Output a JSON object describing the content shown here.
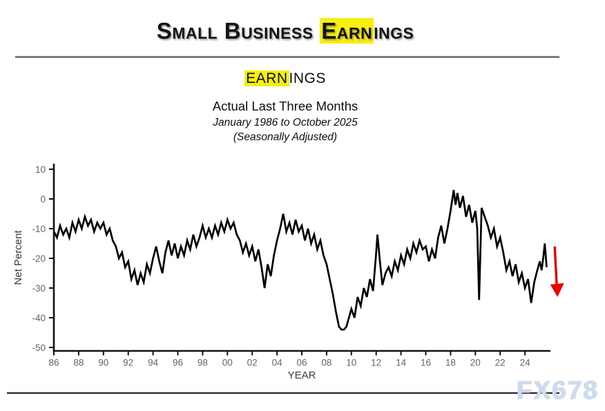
{
  "page": {
    "title": {
      "pre": "Small Business ",
      "highlight": "Earn",
      "post": "ings"
    },
    "watermark": "FX678"
  },
  "subtitle": {
    "heading": {
      "pre": "",
      "highlight": "EARN",
      "post": "INGS"
    },
    "line1": "Actual Last Three Months",
    "line2": "January 1986 to October 2025",
    "line3": "(Seasonally Adjusted)"
  },
  "chart_data": {
    "type": "line",
    "title": "Small Business Earnings — Actual Last Three Months (Seasonally Adjusted)",
    "xlabel": "YEAR",
    "ylabel": "Net Percent",
    "xlim": [
      1986,
      2026.2
    ],
    "ylim": [
      -51,
      11
    ],
    "grid": false,
    "legend": "none",
    "line_color": "#000000",
    "highlight_color": "#f7ef13",
    "annotation_color": "#ee0000",
    "y_ticks": [
      10,
      0,
      -10,
      -20,
      -30,
      -40,
      -50
    ],
    "x_ticks": [
      [
        1986,
        "86"
      ],
      [
        1988,
        "88"
      ],
      [
        1990,
        "90"
      ],
      [
        1992,
        "92"
      ],
      [
        1994,
        "94"
      ],
      [
        1996,
        "96"
      ],
      [
        1998,
        "98"
      ],
      [
        2000,
        "00"
      ],
      [
        2002,
        "02"
      ],
      [
        2004,
        "04"
      ],
      [
        2006,
        "06"
      ],
      [
        2008,
        "08"
      ],
      [
        2010,
        "10"
      ],
      [
        2012,
        "12"
      ],
      [
        2014,
        "14"
      ],
      [
        2016,
        "16"
      ],
      [
        2018,
        "18"
      ],
      [
        2020,
        "20"
      ],
      [
        2022,
        "22"
      ],
      [
        2024,
        "24"
      ]
    ],
    "series": [
      {
        "name": "Actual earnings changes, net percent",
        "points": [
          [
            1986,
            -11
          ],
          [
            1986.25,
            -13
          ],
          [
            1986.5,
            -9
          ],
          [
            1986.75,
            -12
          ],
          [
            1987,
            -10
          ],
          [
            1987.25,
            -13
          ],
          [
            1987.5,
            -8
          ],
          [
            1987.75,
            -11
          ],
          [
            1988,
            -7
          ],
          [
            1988.25,
            -10
          ],
          [
            1988.5,
            -6
          ],
          [
            1988.75,
            -9
          ],
          [
            1989,
            -7
          ],
          [
            1989.25,
            -11
          ],
          [
            1989.5,
            -8
          ],
          [
            1989.75,
            -10
          ],
          [
            1990,
            -8
          ],
          [
            1990.25,
            -12
          ],
          [
            1990.5,
            -10
          ],
          [
            1990.75,
            -14
          ],
          [
            1991,
            -16
          ],
          [
            1991.25,
            -20
          ],
          [
            1991.5,
            -18
          ],
          [
            1991.75,
            -23
          ],
          [
            1992,
            -21
          ],
          [
            1992.25,
            -27
          ],
          [
            1992.5,
            -24
          ],
          [
            1992.75,
            -29
          ],
          [
            1993,
            -25
          ],
          [
            1993.25,
            -28
          ],
          [
            1993.5,
            -22
          ],
          [
            1993.75,
            -25
          ],
          [
            1994,
            -20
          ],
          [
            1994.25,
            -16
          ],
          [
            1994.5,
            -21
          ],
          [
            1994.75,
            -25
          ],
          [
            1995,
            -18
          ],
          [
            1995.25,
            -14
          ],
          [
            1995.5,
            -19
          ],
          [
            1995.75,
            -15
          ],
          [
            1996,
            -20
          ],
          [
            1996.25,
            -16
          ],
          [
            1996.5,
            -19
          ],
          [
            1996.75,
            -14
          ],
          [
            1997,
            -17
          ],
          [
            1997.25,
            -12
          ],
          [
            1997.5,
            -16
          ],
          [
            1997.75,
            -13
          ],
          [
            1998,
            -9
          ],
          [
            1998.25,
            -13
          ],
          [
            1998.5,
            -10
          ],
          [
            1998.75,
            -13
          ],
          [
            1999,
            -9
          ],
          [
            1999.25,
            -12
          ],
          [
            1999.5,
            -8
          ],
          [
            1999.75,
            -11
          ],
          [
            2000,
            -7
          ],
          [
            2000.25,
            -10
          ],
          [
            2000.5,
            -8
          ],
          [
            2000.75,
            -12
          ],
          [
            2001,
            -14
          ],
          [
            2001.25,
            -18
          ],
          [
            2001.5,
            -15
          ],
          [
            2001.75,
            -19
          ],
          [
            2002,
            -16
          ],
          [
            2002.25,
            -21
          ],
          [
            2002.5,
            -17
          ],
          [
            2002.75,
            -23
          ],
          [
            2003,
            -30
          ],
          [
            2003.25,
            -22
          ],
          [
            2003.5,
            -26
          ],
          [
            2003.75,
            -19
          ],
          [
            2004,
            -14
          ],
          [
            2004.25,
            -10
          ],
          [
            2004.5,
            -5
          ],
          [
            2004.75,
            -11
          ],
          [
            2005,
            -8
          ],
          [
            2005.25,
            -12
          ],
          [
            2005.5,
            -7
          ],
          [
            2005.75,
            -11
          ],
          [
            2006,
            -9
          ],
          [
            2006.25,
            -14
          ],
          [
            2006.5,
            -10
          ],
          [
            2006.75,
            -15
          ],
          [
            2007,
            -12
          ],
          [
            2007.25,
            -17
          ],
          [
            2007.5,
            -14
          ],
          [
            2007.75,
            -19
          ],
          [
            2008,
            -22
          ],
          [
            2008.25,
            -27
          ],
          [
            2008.5,
            -32
          ],
          [
            2008.75,
            -38
          ],
          [
            2009,
            -43
          ],
          [
            2009.2,
            -44
          ],
          [
            2009.4,
            -44
          ],
          [
            2009.6,
            -43
          ],
          [
            2009.8,
            -40
          ],
          [
            2010,
            -37
          ],
          [
            2010.25,
            -40
          ],
          [
            2010.5,
            -33
          ],
          [
            2010.75,
            -36
          ],
          [
            2011,
            -30
          ],
          [
            2011.25,
            -33
          ],
          [
            2011.5,
            -27
          ],
          [
            2011.75,
            -31
          ],
          [
            2012,
            -18
          ],
          [
            2012.1,
            -12
          ],
          [
            2012.3,
            -21
          ],
          [
            2012.5,
            -29
          ],
          [
            2012.75,
            -25
          ],
          [
            2013,
            -23
          ],
          [
            2013.25,
            -26
          ],
          [
            2013.5,
            -21
          ],
          [
            2013.75,
            -24
          ],
          [
            2014,
            -19
          ],
          [
            2014.25,
            -22
          ],
          [
            2014.5,
            -17
          ],
          [
            2014.75,
            -20
          ],
          [
            2015,
            -15
          ],
          [
            2015.25,
            -18
          ],
          [
            2015.5,
            -14
          ],
          [
            2015.75,
            -17
          ],
          [
            2016,
            -16
          ],
          [
            2016.25,
            -21
          ],
          [
            2016.5,
            -17
          ],
          [
            2016.75,
            -20
          ],
          [
            2017,
            -13
          ],
          [
            2017.25,
            -9
          ],
          [
            2017.5,
            -15
          ],
          [
            2017.75,
            -10
          ],
          [
            2018,
            -4
          ],
          [
            2018.25,
            3
          ],
          [
            2018.4,
            -2
          ],
          [
            2018.55,
            2
          ],
          [
            2018.75,
            -3
          ],
          [
            2019,
            1
          ],
          [
            2019.25,
            -6
          ],
          [
            2019.5,
            -2
          ],
          [
            2019.75,
            -8
          ],
          [
            2020,
            -4
          ],
          [
            2020.15,
            -10
          ],
          [
            2020.3,
            -34
          ],
          [
            2020.5,
            -3
          ],
          [
            2020.75,
            -6
          ],
          [
            2021,
            -9
          ],
          [
            2021.25,
            -13
          ],
          [
            2021.5,
            -10
          ],
          [
            2021.75,
            -16
          ],
          [
            2022,
            -13
          ],
          [
            2022.25,
            -18
          ],
          [
            2022.5,
            -24
          ],
          [
            2022.75,
            -21
          ],
          [
            2023,
            -26
          ],
          [
            2023.25,
            -22
          ],
          [
            2023.5,
            -28
          ],
          [
            2023.75,
            -25
          ],
          [
            2024,
            -30
          ],
          [
            2024.25,
            -27
          ],
          [
            2024.5,
            -35
          ],
          [
            2024.75,
            -28
          ],
          [
            2025,
            -24
          ],
          [
            2025.2,
            -21
          ],
          [
            2025.35,
            -24
          ],
          [
            2025.5,
            -19
          ],
          [
            2025.6,
            -15
          ],
          [
            2025.75,
            -23
          ]
        ]
      }
    ],
    "annotation": {
      "type": "arrow-down",
      "color": "#ee0000",
      "x_year": 2026.4,
      "value_from": -16,
      "value_to": -33
    }
  }
}
